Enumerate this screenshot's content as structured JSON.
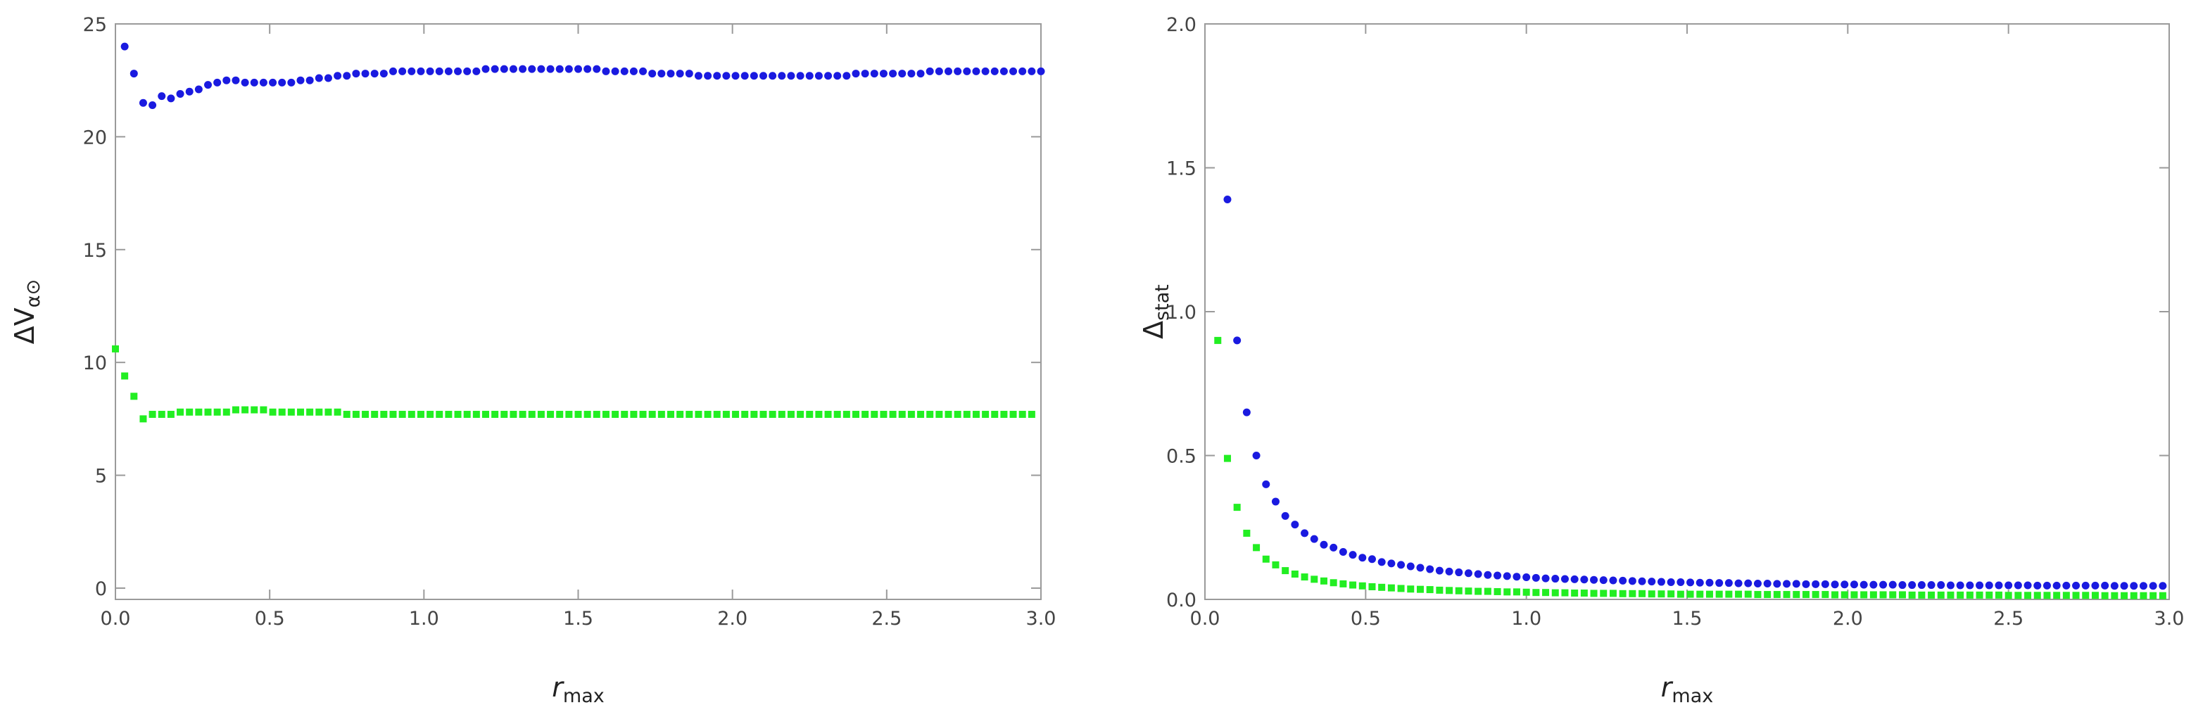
{
  "chart_data": [
    {
      "type": "scatter",
      "xlabel": [
        "r",
        "max"
      ],
      "ylabel": [
        "ΔV",
        "α⊙"
      ],
      "xlim": [
        0,
        3
      ],
      "ylim": [
        -0.5,
        25
      ],
      "xticks": [
        {
          "value": 0,
          "label": "0.0"
        },
        {
          "value": 0.5,
          "label": "0.5"
        },
        {
          "value": 1,
          "label": "1.0"
        },
        {
          "value": 1.5,
          "label": "1.5"
        },
        {
          "value": 2,
          "label": "2.0"
        },
        {
          "value": 2.5,
          "label": "2.5"
        },
        {
          "value": 3,
          "label": "3.0"
        }
      ],
      "yticks": [
        0,
        5,
        10,
        15,
        20,
        25
      ],
      "series": [
        {
          "color": "#1a1ae0",
          "marker": "circle",
          "x": [
            0.03,
            0.06,
            0.09,
            0.12,
            0.15,
            0.18,
            0.21,
            0.24,
            0.27,
            0.3,
            0.33,
            0.36,
            0.39,
            0.42,
            0.45,
            0.48,
            0.51,
            0.54,
            0.57,
            0.6,
            0.63,
            0.66,
            0.69,
            0.72,
            0.75,
            0.78,
            0.81,
            0.84,
            0.87,
            0.9,
            0.93,
            0.96,
            0.99,
            1.02,
            1.05,
            1.08,
            1.11,
            1.14,
            1.17,
            1.2,
            1.23,
            1.26,
            1.29,
            1.32,
            1.35,
            1.38,
            1.41,
            1.44,
            1.47,
            1.5,
            1.53,
            1.56,
            1.59,
            1.62,
            1.65,
            1.68,
            1.71,
            1.74,
            1.77,
            1.8,
            1.83,
            1.86,
            1.89,
            1.92,
            1.95,
            1.98,
            2.01,
            2.04,
            2.07,
            2.1,
            2.13,
            2.16,
            2.19,
            2.22,
            2.25,
            2.28,
            2.31,
            2.34,
            2.37,
            2.4,
            2.43,
            2.46,
            2.49,
            2.52,
            2.55,
            2.58,
            2.61,
            2.64,
            2.67,
            2.7,
            2.73,
            2.76,
            2.79,
            2.82,
            2.85,
            2.88,
            2.91,
            2.94,
            2.97,
            3.0
          ],
          "values": [
            24.0,
            22.8,
            21.5,
            21.4,
            21.8,
            21.7,
            21.9,
            22.0,
            22.1,
            22.3,
            22.4,
            22.5,
            22.5,
            22.4,
            22.4,
            22.4,
            22.4,
            22.4,
            22.4,
            22.5,
            22.5,
            22.6,
            22.6,
            22.7,
            22.7,
            22.8,
            22.8,
            22.8,
            22.8,
            22.9,
            22.9,
            22.9,
            22.9,
            22.9,
            22.9,
            22.9,
            22.9,
            22.9,
            22.9,
            23.0,
            23.0,
            23.0,
            23.0,
            23.0,
            23.0,
            23.0,
            23.0,
            23.0,
            23.0,
            23.0,
            23.0,
            23.0,
            22.9,
            22.9,
            22.9,
            22.9,
            22.9,
            22.8,
            22.8,
            22.8,
            22.8,
            22.8,
            22.7,
            22.7,
            22.7,
            22.7,
            22.7,
            22.7,
            22.7,
            22.7,
            22.7,
            22.7,
            22.7,
            22.7,
            22.7,
            22.7,
            22.7,
            22.7,
            22.7,
            22.8,
            22.8,
            22.8,
            22.8,
            22.8,
            22.8,
            22.8,
            22.8,
            22.9,
            22.9,
            22.9,
            22.9,
            22.9,
            22.9,
            22.9,
            22.9,
            22.9,
            22.9,
            22.9,
            22.9,
            22.9
          ]
        },
        {
          "color": "#22ee22",
          "marker": "square",
          "x": [
            0,
            0.03,
            0.06,
            0.09,
            0.12,
            0.15,
            0.18,
            0.21,
            0.24,
            0.27,
            0.3,
            0.33,
            0.36,
            0.39,
            0.42,
            0.45,
            0.48,
            0.51,
            0.54,
            0.57,
            0.6,
            0.63,
            0.66,
            0.69,
            0.72,
            0.75,
            0.78,
            0.81,
            0.84,
            0.87,
            0.9,
            0.93,
            0.96,
            0.99,
            1.02,
            1.05,
            1.08,
            1.11,
            1.14,
            1.17,
            1.2,
            1.23,
            1.26,
            1.29,
            1.32,
            1.35,
            1.38,
            1.41,
            1.44,
            1.47,
            1.5,
            1.53,
            1.56,
            1.59,
            1.62,
            1.65,
            1.68,
            1.71,
            1.74,
            1.77,
            1.8,
            1.83,
            1.86,
            1.89,
            1.92,
            1.95,
            1.98,
            2.01,
            2.04,
            2.07,
            2.1,
            2.13,
            2.16,
            2.19,
            2.22,
            2.25,
            2.28,
            2.31,
            2.34,
            2.37,
            2.4,
            2.43,
            2.46,
            2.49,
            2.52,
            2.55,
            2.58,
            2.61,
            2.64,
            2.67,
            2.7,
            2.73,
            2.76,
            2.79,
            2.82,
            2.85,
            2.88,
            2.91,
            2.94,
            2.97
          ],
          "values": [
            10.6,
            9.4,
            8.5,
            7.5,
            7.7,
            7.7,
            7.7,
            7.8,
            7.8,
            7.8,
            7.8,
            7.8,
            7.8,
            7.9,
            7.9,
            7.9,
            7.9,
            7.8,
            7.8,
            7.8,
            7.8,
            7.8,
            7.8,
            7.8,
            7.8,
            7.7,
            7.7,
            7.7,
            7.7,
            7.7,
            7.7,
            7.7,
            7.7,
            7.7,
            7.7,
            7.7,
            7.7,
            7.7,
            7.7,
            7.7,
            7.7,
            7.7,
            7.7,
            7.7,
            7.7,
            7.7,
            7.7,
            7.7,
            7.7,
            7.7,
            7.7,
            7.7,
            7.7,
            7.7,
            7.7,
            7.7,
            7.7,
            7.7,
            7.7,
            7.7,
            7.7,
            7.7,
            7.7,
            7.7,
            7.7,
            7.7,
            7.7,
            7.7,
            7.7,
            7.7,
            7.7,
            7.7,
            7.7,
            7.7,
            7.7,
            7.7,
            7.7,
            7.7,
            7.7,
            7.7,
            7.7,
            7.7,
            7.7,
            7.7,
            7.7,
            7.7,
            7.7,
            7.7,
            7.7,
            7.7,
            7.7,
            7.7,
            7.7,
            7.7,
            7.7,
            7.7,
            7.7,
            7.7,
            7.7,
            7.7
          ]
        }
      ]
    },
    {
      "type": "scatter",
      "xlabel": [
        "r",
        "max"
      ],
      "ylabel": [
        "Δ",
        "stat"
      ],
      "xlim": [
        0,
        3
      ],
      "ylim": [
        0,
        2
      ],
      "xticks": [
        {
          "value": 0,
          "label": "0.0"
        },
        {
          "value": 0.5,
          "label": "0.5"
        },
        {
          "value": 1,
          "label": "1.0"
        },
        {
          "value": 1.5,
          "label": "1.5"
        },
        {
          "value": 2,
          "label": "2.0"
        },
        {
          "value": 2.5,
          "label": "2.5"
        },
        {
          "value": 3,
          "label": "3.0"
        }
      ],
      "yticks": [
        {
          "value": 0,
          "label": "0.0"
        },
        {
          "value": 0.5,
          "label": "0.5"
        },
        {
          "value": 1,
          "label": "1.0"
        },
        {
          "value": 1.5,
          "label": "1.5"
        },
        {
          "value": 2,
          "label": "2.0"
        }
      ],
      "series": [
        {
          "color": "#1a1ae0",
          "marker": "circle",
          "x": [
            0.07,
            0.1,
            0.13,
            0.16,
            0.19,
            0.22,
            0.25,
            0.28,
            0.31,
            0.34,
            0.37,
            0.4,
            0.43,
            0.46,
            0.49,
            0.52,
            0.55,
            0.58,
            0.61,
            0.64,
            0.67,
            0.7,
            0.73,
            0.76,
            0.79,
            0.82,
            0.85,
            0.88,
            0.91,
            0.94,
            0.97,
            1,
            1.03,
            1.06,
            1.09,
            1.12,
            1.15,
            1.18,
            1.21,
            1.24,
            1.27,
            1.3,
            1.33,
            1.36,
            1.39,
            1.42,
            1.45,
            1.48,
            1.51,
            1.54,
            1.57,
            1.6,
            1.63,
            1.66,
            1.69,
            1.72,
            1.75,
            1.78,
            1.81,
            1.84,
            1.87,
            1.9,
            1.93,
            1.96,
            1.99,
            2.02,
            2.05,
            2.08,
            2.11,
            2.14,
            2.17,
            2.2,
            2.23,
            2.26,
            2.29,
            2.32,
            2.35,
            2.38,
            2.41,
            2.44,
            2.47,
            2.5,
            2.53,
            2.56,
            2.59,
            2.62,
            2.65,
            2.68,
            2.71,
            2.74,
            2.77,
            2.8,
            2.83,
            2.86,
            2.89,
            2.92,
            2.95,
            2.98
          ],
          "values": [
            1.39,
            0.9,
            0.65,
            0.5,
            0.4,
            0.34,
            0.29,
            0.26,
            0.23,
            0.21,
            0.19,
            0.18,
            0.165,
            0.155,
            0.145,
            0.14,
            0.13,
            0.125,
            0.12,
            0.115,
            0.11,
            0.105,
            0.1,
            0.097,
            0.094,
            0.091,
            0.088,
            0.085,
            0.083,
            0.081,
            0.079,
            0.077,
            0.075,
            0.073,
            0.072,
            0.071,
            0.07,
            0.069,
            0.068,
            0.067,
            0.066,
            0.065,
            0.064,
            0.063,
            0.062,
            0.061,
            0.06,
            0.06,
            0.059,
            0.058,
            0.058,
            0.057,
            0.057,
            0.056,
            0.056,
            0.055,
            0.055,
            0.054,
            0.054,
            0.054,
            0.053,
            0.053,
            0.053,
            0.052,
            0.052,
            0.052,
            0.051,
            0.051,
            0.051,
            0.051,
            0.05,
            0.05,
            0.05,
            0.05,
            0.05,
            0.049,
            0.049,
            0.049,
            0.049,
            0.049,
            0.049,
            0.049,
            0.049,
            0.049,
            0.048,
            0.048,
            0.048,
            0.048,
            0.048,
            0.048,
            0.048,
            0.048,
            0.047,
            0.047,
            0.047,
            0.047,
            0.047,
            0.047
          ]
        },
        {
          "color": "#22ee22",
          "marker": "square",
          "x": [
            0.04,
            0.07,
            0.1,
            0.13,
            0.16,
            0.19,
            0.22,
            0.25,
            0.28,
            0.31,
            0.34,
            0.37,
            0.4,
            0.43,
            0.46,
            0.49,
            0.52,
            0.55,
            0.58,
            0.61,
            0.64,
            0.67,
            0.7,
            0.73,
            0.76,
            0.79,
            0.82,
            0.85,
            0.88,
            0.91,
            0.94,
            0.97,
            1,
            1.03,
            1.06,
            1.09,
            1.12,
            1.15,
            1.18,
            1.21,
            1.24,
            1.27,
            1.3,
            1.33,
            1.36,
            1.39,
            1.42,
            1.45,
            1.48,
            1.51,
            1.54,
            1.57,
            1.6,
            1.63,
            1.66,
            1.69,
            1.72,
            1.75,
            1.78,
            1.81,
            1.84,
            1.87,
            1.9,
            1.93,
            1.96,
            1.99,
            2.02,
            2.05,
            2.08,
            2.11,
            2.14,
            2.17,
            2.2,
            2.23,
            2.26,
            2.29,
            2.32,
            2.35,
            2.38,
            2.41,
            2.44,
            2.47,
            2.5,
            2.53,
            2.56,
            2.59,
            2.62,
            2.65,
            2.68,
            2.71,
            2.74,
            2.77,
            2.8,
            2.83,
            2.86,
            2.89,
            2.92,
            2.95,
            2.98
          ],
          "values": [
            0.9,
            0.49,
            0.32,
            0.23,
            0.18,
            0.14,
            0.12,
            0.1,
            0.088,
            0.078,
            0.07,
            0.064,
            0.058,
            0.054,
            0.05,
            0.047,
            0.044,
            0.042,
            0.04,
            0.038,
            0.036,
            0.035,
            0.034,
            0.032,
            0.031,
            0.03,
            0.029,
            0.028,
            0.028,
            0.027,
            0.026,
            0.026,
            0.025,
            0.024,
            0.024,
            0.023,
            0.023,
            0.022,
            0.022,
            0.021,
            0.021,
            0.021,
            0.02,
            0.02,
            0.02,
            0.019,
            0.019,
            0.019,
            0.018,
            0.018,
            0.018,
            0.018,
            0.018,
            0.018,
            0.018,
            0.018,
            0.017,
            0.017,
            0.017,
            0.017,
            0.017,
            0.017,
            0.017,
            0.017,
            0.016,
            0.016,
            0.016,
            0.016,
            0.016,
            0.016,
            0.016,
            0.016,
            0.015,
            0.015,
            0.015,
            0.015,
            0.015,
            0.015,
            0.015,
            0.015,
            0.015,
            0.015,
            0.014,
            0.014,
            0.014,
            0.014,
            0.014,
            0.014,
            0.014,
            0.014,
            0.014,
            0.014,
            0.013,
            0.013,
            0.013,
            0.013,
            0.013,
            0.013,
            0.013
          ]
        }
      ]
    }
  ]
}
